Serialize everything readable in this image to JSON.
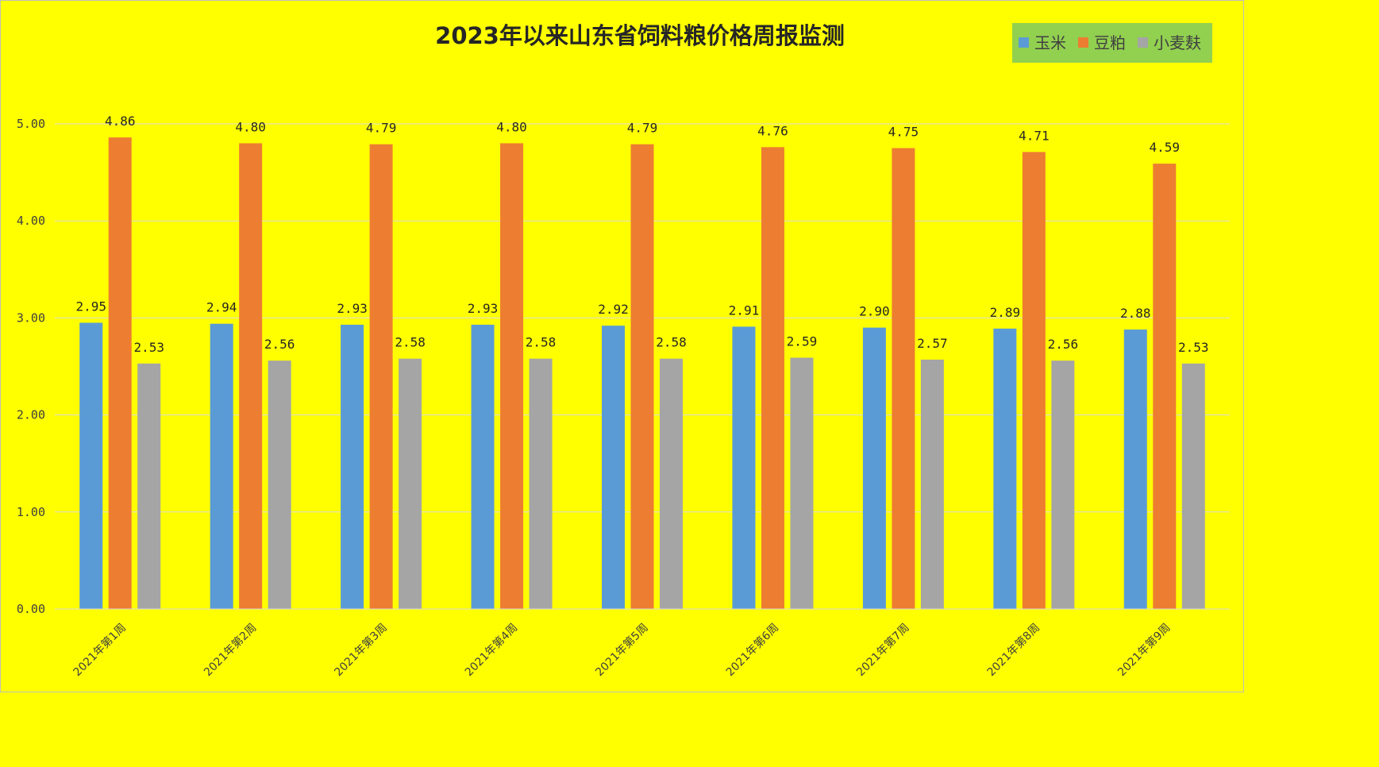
{
  "chart_data": {
    "type": "bar",
    "title": "2023年以来山东省饲料粮价格周报监测",
    "categories": [
      "2021年第1周",
      "2021年第2周",
      "2021年第3周",
      "2021年第4周",
      "2021年第5周",
      "2021年第6周",
      "2021年第7周",
      "2021年第8周",
      "2021年第9周"
    ],
    "series": [
      {
        "name": "玉米",
        "color": "#5b9bd5",
        "values": [
          2.95,
          2.94,
          2.93,
          2.93,
          2.92,
          2.91,
          2.9,
          2.89,
          2.88
        ]
      },
      {
        "name": "豆粕",
        "color": "#ed7d31",
        "values": [
          4.86,
          4.8,
          4.79,
          4.8,
          4.79,
          4.76,
          4.75,
          4.71,
          4.59
        ]
      },
      {
        "name": "小麦麸",
        "color": "#a5a5a5",
        "values": [
          2.53,
          2.56,
          2.58,
          2.58,
          2.58,
          2.59,
          2.57,
          2.56,
          2.53
        ]
      }
    ],
    "yticks": [
      "0.00",
      "1.00",
      "2.00",
      "3.00",
      "4.00",
      "5.00"
    ],
    "ylim": [
      0,
      5
    ],
    "xlabel": "",
    "ylabel": "",
    "grid": true,
    "legend_position": "top-right",
    "legend_background": "#92d050",
    "background": "#ffff00"
  }
}
